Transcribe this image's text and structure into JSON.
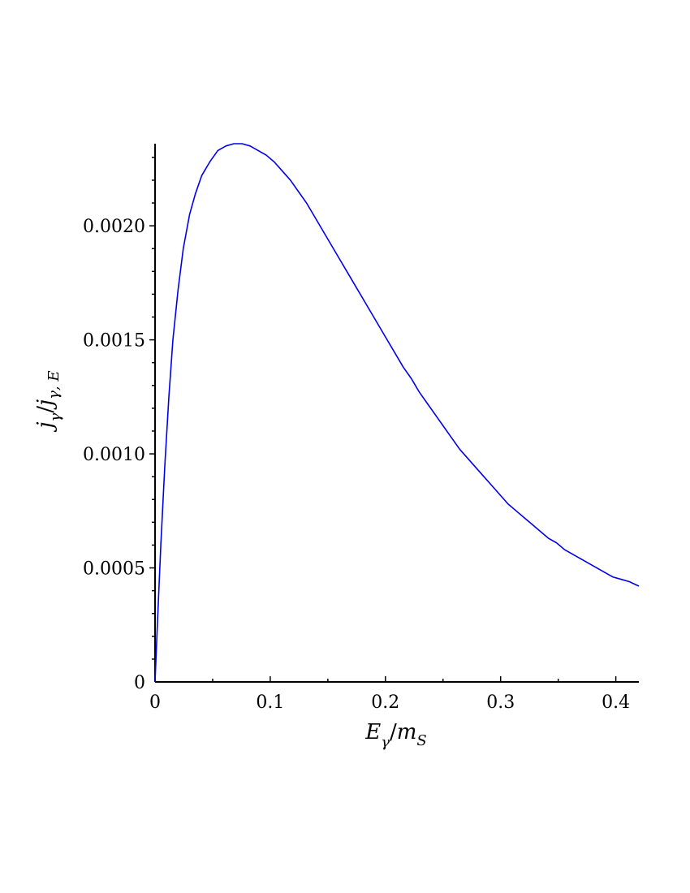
{
  "chart_data": {
    "type": "line",
    "title": "",
    "xlabel": {
      "main": "E",
      "sub1": "γ",
      "sep": "/",
      "main2": "m",
      "sub2": "S"
    },
    "ylabel": {
      "main": "j",
      "sub1": "γ",
      "sep": "/",
      "main2": "j",
      "sub2": "γ, E"
    },
    "xlim": [
      0,
      0.42
    ],
    "ylim": [
      0,
      0.00236
    ],
    "grid": false,
    "x_ticks": [
      {
        "value": 0,
        "label": "0"
      },
      {
        "value": 0.1,
        "label": "0.1"
      },
      {
        "value": 0.2,
        "label": "0.2"
      },
      {
        "value": 0.3,
        "label": "0.3"
      },
      {
        "value": 0.4,
        "label": "0.4"
      }
    ],
    "y_ticks": [
      {
        "value": 0,
        "label": "0"
      },
      {
        "value": 0.0005,
        "label": "0.0005"
      },
      {
        "value": 0.001,
        "label": "0.0010"
      },
      {
        "value": 0.0015,
        "label": "0.0015"
      },
      {
        "value": 0.002,
        "label": "0.0020"
      }
    ],
    "series": [
      {
        "color": "#0000ee",
        "x": [
          0,
          0.002,
          0.005,
          0.0085,
          0.012,
          0.0155,
          0.02,
          0.0245,
          0.03,
          0.035,
          0.0405,
          0.0475,
          0.0545,
          0.0615,
          0.0685,
          0.0755,
          0.0825,
          0.0895,
          0.0965,
          0.1035,
          0.1105,
          0.1175,
          0.1245,
          0.1315,
          0.1385,
          0.1455,
          0.1525,
          0.1595,
          0.1665,
          0.1735,
          0.1805,
          0.1875,
          0.1945,
          0.2015,
          0.2085,
          0.2155,
          0.2225,
          0.2295,
          0.2365,
          0.2435,
          0.2505,
          0.2575,
          0.2645,
          0.2715,
          0.2785,
          0.2855,
          0.2925,
          0.2995,
          0.3065,
          0.3135,
          0.3205,
          0.3275,
          0.3345,
          0.3415,
          0.3485,
          0.3555,
          0.3625,
          0.3695,
          0.3765,
          0.3835,
          0.3905,
          0.3975,
          0.4045,
          0.4115,
          0.42
        ],
        "y": [
          0,
          0.00025,
          0.0006,
          0.00095,
          0.00125,
          0.0015,
          0.00172,
          0.0019,
          0.00205,
          0.00214,
          0.00222,
          0.00228,
          0.00233,
          0.00235,
          0.00236,
          0.00236,
          0.00235,
          0.00233,
          0.00231,
          0.00228,
          0.00224,
          0.0022,
          0.00215,
          0.0021,
          0.00204,
          0.00198,
          0.00192,
          0.00186,
          0.0018,
          0.00174,
          0.00168,
          0.00162,
          0.00156,
          0.0015,
          0.00144,
          0.00138,
          0.00133,
          0.00127,
          0.00122,
          0.00117,
          0.00112,
          0.00107,
          0.00102,
          0.00098,
          0.00094,
          0.0009,
          0.00086,
          0.00082,
          0.00078,
          0.00075,
          0.00072,
          0.00069,
          0.00066,
          0.00063,
          0.00061,
          0.00058,
          0.00056,
          0.00054,
          0.00052,
          0.0005,
          0.00048,
          0.00046,
          0.00045,
          0.00044,
          0.00042
        ]
      }
    ]
  }
}
